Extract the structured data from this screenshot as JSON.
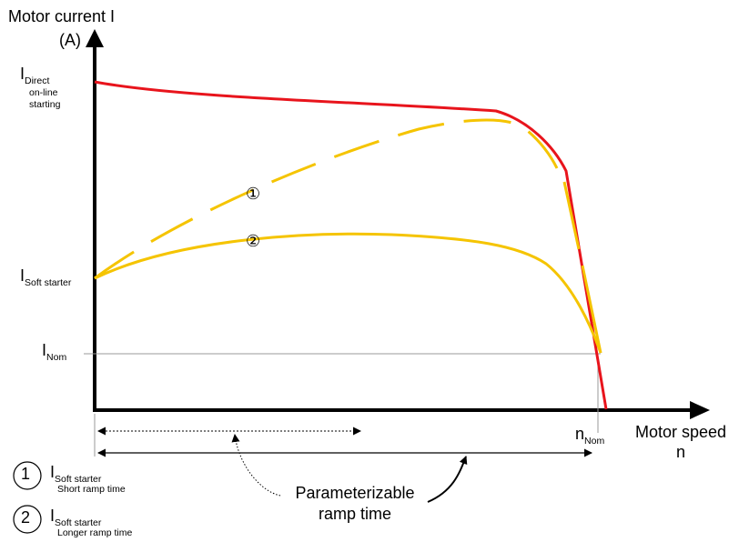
{
  "diagram": {
    "y_axis": {
      "label_line1": "Motor current I",
      "label_line2": "(A)"
    },
    "x_axis": {
      "label_line1": "Motor speed",
      "label_line2": "n"
    },
    "y_levels": {
      "direct": {
        "main": "I",
        "sub": "Direct",
        "line2": "on-line",
        "line3": "starting"
      },
      "soft_starter": {
        "main": "I",
        "sub": "Soft starter"
      },
      "nominal": {
        "main": "I",
        "sub": "Nom"
      }
    },
    "x_marker": {
      "main": "n",
      "sub": "Nom"
    },
    "curve_markers": [
      "①",
      "②"
    ],
    "ramp_label": {
      "line1": "Parameterizable",
      "line2": "ramp time"
    },
    "legend": [
      {
        "symbol": "1",
        "main": "I",
        "sub": "Soft starter",
        "desc": "Short ramp time"
      },
      {
        "symbol": "2",
        "main": "I",
        "sub": "Soft starter",
        "desc": "Longer ramp time"
      }
    ],
    "colors": {
      "direct_curve": "#e8141c",
      "soft_curves": "#f5c400",
      "axis": "#000000",
      "guide": "#999999"
    }
  }
}
